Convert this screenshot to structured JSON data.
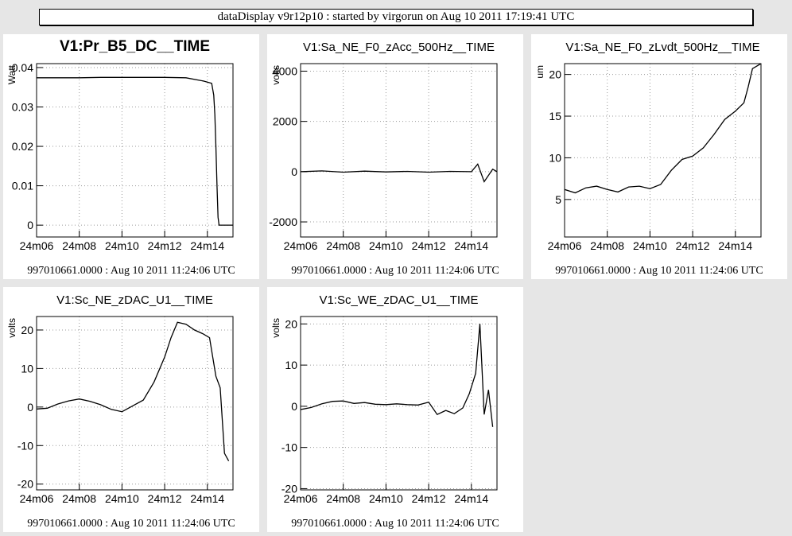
{
  "header": {
    "title": "dataDisplay v9r12p10 : started by virgorun on Aug 10 2011 17:19:41 UTC"
  },
  "chart_data": [
    {
      "type": "line",
      "title": "V1:Pr_B5_DC__TIME",
      "ylabel": "Watt",
      "footer": "997010661.0000 : Aug 10 2011 11:24:06 UTC",
      "xlim": [
        6,
        15.2
      ],
      "ylim": [
        -0.003,
        0.041
      ],
      "x_ticks": [
        6,
        8,
        10,
        12,
        14
      ],
      "x_tick_labels": [
        "24m06",
        "24m08",
        "24m10",
        "24m12",
        "24m14"
      ],
      "y_ticks": [
        0,
        0.01,
        0.02,
        0.03,
        0.04
      ],
      "y_tick_labels": [
        "0",
        "0.01",
        "0.02",
        "0.03",
        "0.04"
      ],
      "grid": true,
      "series": [
        {
          "values": [
            [
              6,
              0.0374
            ],
            [
              7,
              0.0374
            ],
            [
              8,
              0.0374
            ],
            [
              9,
              0.0375
            ],
            [
              10,
              0.0375
            ],
            [
              11,
              0.0375
            ],
            [
              12,
              0.0375
            ],
            [
              13,
              0.0374
            ],
            [
              13.8,
              0.0366
            ],
            [
              14.2,
              0.036
            ],
            [
              14.3,
              0.033
            ],
            [
              14.35,
              0.028
            ],
            [
              14.4,
              0.02
            ],
            [
              14.45,
              0.01
            ],
            [
              14.5,
              0.002
            ],
            [
              14.55,
              0
            ],
            [
              15.2,
              0
            ]
          ]
        }
      ]
    },
    {
      "type": "line",
      "title": "V1:Sa_NE_F0_zAcc_500Hz__TIME",
      "ylabel": "volts",
      "footer": "997010661.0000 : Aug 10 2011 11:24:06 UTC",
      "xlim": [
        6,
        15.2
      ],
      "ylim": [
        -2600,
        4300
      ],
      "x_ticks": [
        6,
        8,
        10,
        12,
        14
      ],
      "x_tick_labels": [
        "24m06",
        "24m08",
        "24m10",
        "24m12",
        "24m14"
      ],
      "y_ticks": [
        -2000,
        0,
        2000,
        4000
      ],
      "y_tick_labels": [
        "-2000",
        "0",
        "2000",
        "4000"
      ],
      "grid": true,
      "series": [
        {
          "values": [
            [
              6,
              0
            ],
            [
              7,
              30
            ],
            [
              8,
              -20
            ],
            [
              9,
              20
            ],
            [
              10,
              -10
            ],
            [
              11,
              10
            ],
            [
              12,
              -20
            ],
            [
              13,
              10
            ],
            [
              14,
              0
            ],
            [
              14.3,
              300
            ],
            [
              14.6,
              -400
            ],
            [
              15,
              100
            ],
            [
              15.2,
              0
            ]
          ]
        }
      ]
    },
    {
      "type": "line",
      "title": "V1:Sa_NE_F0_zLvdt_500Hz__TIME",
      "ylabel": "um",
      "footer": "997010661.0000 : Aug 10 2011 11:24:06 UTC",
      "xlim": [
        6,
        15.2
      ],
      "ylim": [
        0.5,
        21.3
      ],
      "x_ticks": [
        6,
        8,
        10,
        12,
        14
      ],
      "x_tick_labels": [
        "24m06",
        "24m08",
        "24m10",
        "24m12",
        "24m14"
      ],
      "y_ticks": [
        5,
        10,
        15,
        20
      ],
      "y_tick_labels": [
        "5",
        "10",
        "15",
        "20"
      ],
      "grid": true,
      "series": [
        {
          "values": [
            [
              6,
              6.2
            ],
            [
              6.5,
              5.8
            ],
            [
              7,
              6.4
            ],
            [
              7.5,
              6.6
            ],
            [
              8,
              6.2
            ],
            [
              8.5,
              5.9
            ],
            [
              9,
              6.5
            ],
            [
              9.5,
              6.6
            ],
            [
              10,
              6.3
            ],
            [
              10.5,
              6.8
            ],
            [
              11,
              8.5
            ],
            [
              11.5,
              9.8
            ],
            [
              12,
              10.2
            ],
            [
              12.5,
              11.2
            ],
            [
              13,
              12.8
            ],
            [
              13.5,
              14.6
            ],
            [
              14,
              15.6
            ],
            [
              14.4,
              16.6
            ],
            [
              14.6,
              18.5
            ],
            [
              14.8,
              20.7
            ],
            [
              15.2,
              21.3
            ]
          ]
        }
      ]
    },
    {
      "type": "line",
      "title": "V1:Sc_NE_zDAC_U1__TIME",
      "ylabel": "volts",
      "footer": "997010661.0000 : Aug 10 2011 11:24:06 UTC",
      "xlim": [
        6,
        15.2
      ],
      "ylim": [
        -21.5,
        23.5
      ],
      "x_ticks": [
        6,
        8,
        10,
        12,
        14
      ],
      "x_tick_labels": [
        "24m06",
        "24m08",
        "24m10",
        "24m12",
        "24m14"
      ],
      "y_ticks": [
        -20,
        -10,
        0,
        10,
        20
      ],
      "y_tick_labels": [
        "-20",
        "-10",
        "0",
        "10",
        "20"
      ],
      "grid": true,
      "series": [
        {
          "values": [
            [
              6,
              -0.5
            ],
            [
              6.5,
              -0.3
            ],
            [
              7,
              0.8
            ],
            [
              7.5,
              1.6
            ],
            [
              8,
              2.1
            ],
            [
              8.5,
              1.5
            ],
            [
              9,
              0.6
            ],
            [
              9.5,
              -0.6
            ],
            [
              10,
              -1.2
            ],
            [
              10.5,
              0.3
            ],
            [
              11,
              1.8
            ],
            [
              11.5,
              6.5
            ],
            [
              12,
              13
            ],
            [
              12.3,
              18
            ],
            [
              12.6,
              22
            ],
            [
              13,
              21.5
            ],
            [
              13.4,
              20
            ],
            [
              13.8,
              19
            ],
            [
              14.1,
              18
            ],
            [
              14.4,
              8
            ],
            [
              14.6,
              5
            ],
            [
              14.8,
              -12
            ],
            [
              15,
              -14
            ]
          ]
        }
      ]
    },
    {
      "type": "line",
      "title": "V1:Sc_WE_zDAC_U1__TIME",
      "ylabel": "volts",
      "footer": "997010661.0000 : Aug 10 2011 11:24:06 UTC",
      "xlim": [
        6,
        15.2
      ],
      "ylim": [
        -20.3,
        21.8
      ],
      "x_ticks": [
        6,
        8,
        10,
        12,
        14
      ],
      "x_tick_labels": [
        "24m06",
        "24m08",
        "24m10",
        "24m12",
        "24m14"
      ],
      "y_ticks": [
        -20,
        -10,
        0,
        10,
        20
      ],
      "y_tick_labels": [
        "-20",
        "-10",
        "0",
        "10",
        "20"
      ],
      "grid": true,
      "series": [
        {
          "values": [
            [
              6,
              -0.8
            ],
            [
              6.5,
              -0.3
            ],
            [
              7,
              0.6
            ],
            [
              7.5,
              1.2
            ],
            [
              8,
              1.3
            ],
            [
              8.5,
              0.7
            ],
            [
              9,
              0.9
            ],
            [
              9.5,
              0.5
            ],
            [
              10,
              0.4
            ],
            [
              10.5,
              0.6
            ],
            [
              11,
              0.4
            ],
            [
              11.5,
              0.3
            ],
            [
              12,
              1
            ],
            [
              12.4,
              -2
            ],
            [
              12.8,
              -1
            ],
            [
              13.2,
              -1.8
            ],
            [
              13.6,
              -0.4
            ],
            [
              13.9,
              3
            ],
            [
              14.2,
              8
            ],
            [
              14.4,
              20
            ],
            [
              14.6,
              -2
            ],
            [
              14.8,
              4
            ],
            [
              15,
              -5
            ]
          ]
        }
      ]
    }
  ]
}
